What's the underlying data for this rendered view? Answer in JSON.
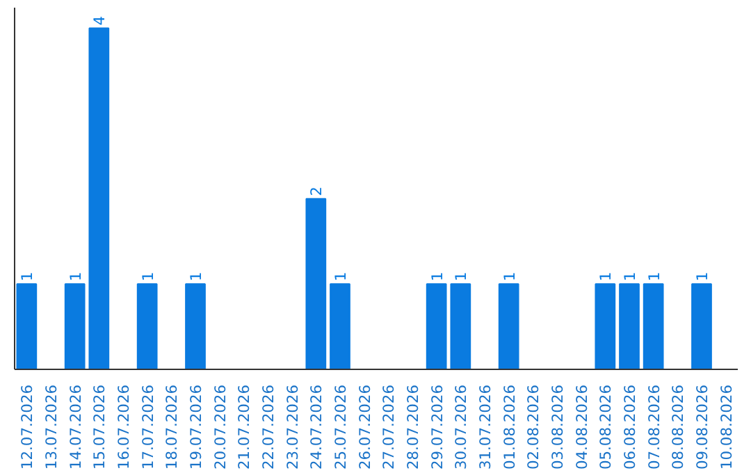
{
  "chart_data": {
    "type": "bar",
    "categories": [
      "12.07.2026",
      "13.07.2026",
      "14.07.2026",
      "15.07.2026",
      "16.07.2026",
      "17.07.2026",
      "18.07.2026",
      "19.07.2026",
      "20.07.2026",
      "21.07.2026",
      "22.07.2026",
      "23.07.2026",
      "24.07.2026",
      "25.07.2026",
      "26.07.2026",
      "27.07.2026",
      "28.07.2026",
      "29.07.2026",
      "30.07.2026",
      "31.07.2026",
      "01.08.2026",
      "02.08.2026",
      "03.08.2026",
      "04.08.2026",
      "05.08.2026",
      "06.08.2026",
      "07.08.2026",
      "08.08.2026",
      "09.08.2026",
      "10.08.2026"
    ],
    "values": [
      1,
      null,
      1,
      4,
      null,
      1,
      null,
      1,
      null,
      null,
      null,
      null,
      2,
      1,
      null,
      null,
      null,
      1,
      1,
      null,
      1,
      null,
      null,
      null,
      1,
      1,
      1,
      null,
      1,
      null
    ],
    "color": "#0a7be0",
    "data_labels": true,
    "grid": false,
    "tick_labels": "x"
  }
}
